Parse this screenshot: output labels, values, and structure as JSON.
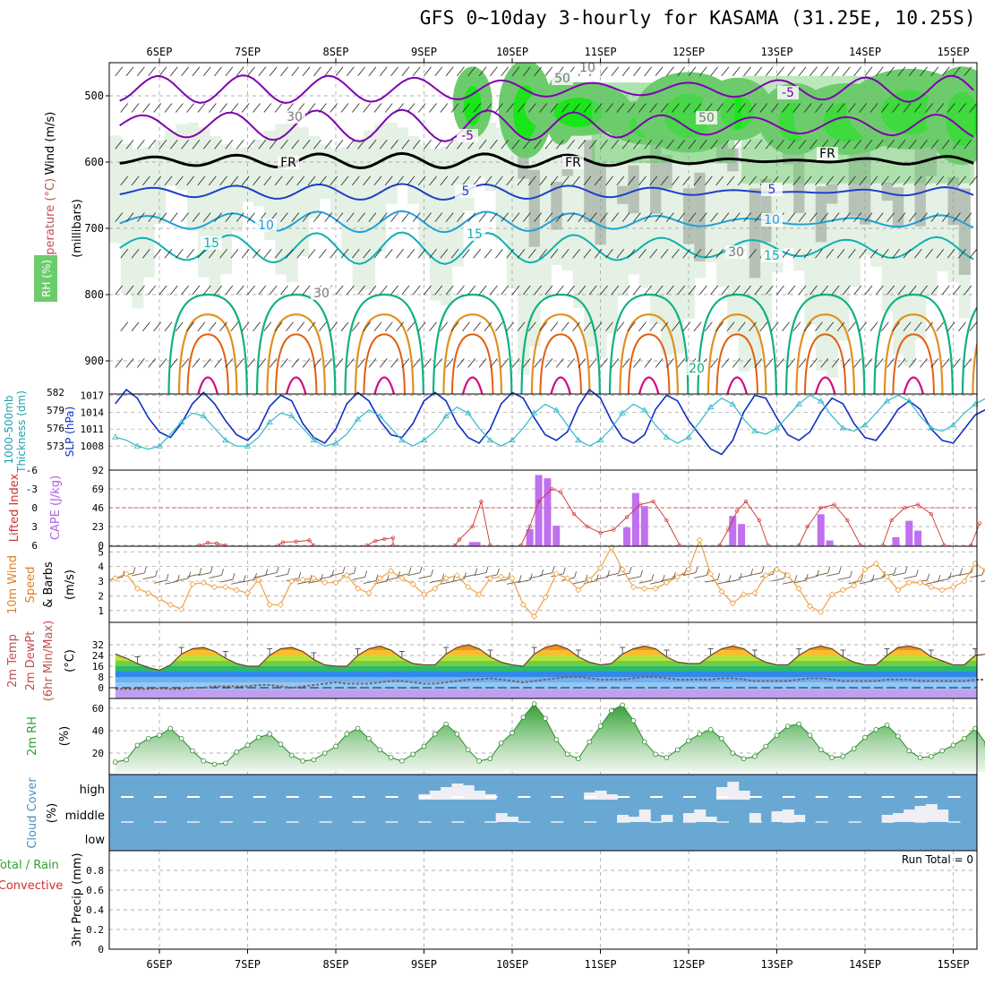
{
  "title": "GFS 0~10day 3-hourly for KASAMA (31.25E, 10.25S)",
  "dates": [
    "6SEP",
    "7SEP",
    "8SEP",
    "9SEP",
    "10SEP",
    "11SEP",
    "12SEP",
    "13SEP",
    "14SEP",
    "15SEP"
  ],
  "colors": {
    "rh_light": "#e4f1e4",
    "rh_mid": "#c9dfc9",
    "rh_grey": "#b7c2b7",
    "rh_green": "#6ccc6c",
    "rh_bright": "#19e619",
    "temp_purple": "#8000b0",
    "temp_blue": "#1e40c8",
    "temp_cyan": "#20a0d8",
    "temp_teal": "#10b0b0",
    "temp_green": "#10b080",
    "temp_orange": "#e09020",
    "temp_darkorange": "#e06010",
    "temp_magenta": "#d01080",
    "slp": "#1030c0",
    "thickness": "#30b8c8",
    "lifted": "#d03030",
    "cape": "#c070f0",
    "wind": "#f0a040",
    "rh2m": "#40b040",
    "cloud": "#6aa8d4",
    "cloud_light": "#eeeef4"
  },
  "panel_labels": {
    "upper": {
      "wind": "Wind (m/s)",
      "temp": "Temperature (°C)",
      "rh": "RH (%)",
      "axis": "(millibars)"
    },
    "slp": {
      "thick": "1000-500mb",
      "thick2": "Thickness (dm)",
      "slp": "SLP (hPa)"
    },
    "cape": {
      "li": "Lifted Index",
      "cape": "CAPE (J/kg)"
    },
    "wind": {
      "a": "10m Wind",
      "b": "Speed",
      "c": "& Barbs",
      "unit": "(m/s)"
    },
    "temp": {
      "a": "2m Temp",
      "b": "2m DewPt",
      "c": "(6hr Min/Max)",
      "unit": "(°C)"
    },
    "rh": {
      "a": "2m RH",
      "unit": "(%)"
    },
    "cloud": {
      "a": "Cloud Cover",
      "unit": "(%)",
      "levels": [
        "high",
        "middle",
        "low"
      ]
    },
    "precip": {
      "a": "Total / Rain",
      "b": "Convective",
      "c": "3hr Precip",
      "unit": "(mm)",
      "run_total": "Run Total = 0"
    }
  },
  "contour_labels": [
    "-5",
    "-5",
    "5",
    "5",
    "10",
    "10",
    "15",
    "15",
    "15",
    "20",
    "FR",
    "FR",
    "FR",
    "50",
    "50",
    "30",
    "30",
    "30",
    "10"
  ],
  "chart_data": [
    {
      "type": "heatmap",
      "name": "upper-air",
      "ylabel": "millibars",
      "yticks": [
        500,
        600,
        700,
        800,
        900
      ],
      "ylim": [
        450,
        950
      ]
    },
    {
      "type": "line",
      "name": "slp-thickness",
      "y1ticks": [
        573,
        576,
        579,
        582
      ],
      "y2ticks": [
        1008,
        1011,
        1014,
        1017
      ],
      "series": [
        {
          "name": "SLP",
          "values": [
            1015.5,
            1018,
            1016.5,
            1013,
            1010.5,
            1009.5,
            1012,
            1015.5,
            1017.5,
            1015.5,
            1012.5,
            1010,
            1009,
            1011,
            1015,
            1017,
            1016,
            1012,
            1009.5,
            1008.5,
            1011,
            1015.5,
            1017.5,
            1016,
            1012.5,
            1010,
            1009.5,
            1012,
            1016,
            1017.5,
            1016,
            1012,
            1009.5,
            1008.5,
            1011,
            1015.5,
            1017.5,
            1016.5,
            1013,
            1010,
            1009,
            1010.5,
            1015,
            1018,
            1016.5,
            1012.5,
            1009.5,
            1008.5,
            1010,
            1014.5,
            1017,
            1016,
            1012.5,
            1010,
            1007.5,
            1006.5,
            1009,
            1014,
            1017,
            1016.5,
            1013,
            1010,
            1009,
            1010.5,
            1014,
            1016.5,
            1015.5,
            1012,
            1009.5,
            1009,
            1011.5,
            1014.5,
            1016,
            1014.5,
            1011,
            1009,
            1008.5,
            1011,
            1013.5,
            1014.5
          ]
        },
        {
          "name": "Thickness",
          "values": [
            574.5,
            574,
            573,
            572.5,
            573,
            575,
            577,
            578.5,
            578,
            576,
            574,
            573,
            573,
            574.5,
            577,
            578.5,
            578,
            576,
            574,
            573,
            573.5,
            575,
            577.5,
            579,
            578,
            576,
            574,
            573,
            574,
            575.5,
            578,
            579.5,
            578.5,
            576,
            574,
            573,
            574,
            576,
            578.5,
            580,
            579,
            576.5,
            574,
            573,
            574,
            576,
            578.5,
            580,
            579,
            576.5,
            574.5,
            573.5,
            574.5,
            577,
            579.5,
            581,
            580,
            577.5,
            575.5,
            575,
            576,
            578,
            580,
            581.5,
            580.5,
            578,
            576,
            575.5,
            576.5,
            578.5,
            580.5,
            581.5,
            580.5,
            578,
            576,
            575.5,
            576.5,
            578.5,
            580,
            581
          ]
        }
      ]
    },
    {
      "type": "bar",
      "name": "cape-lifted-index",
      "y1ticks": [
        6,
        3,
        0,
        -3,
        -6
      ],
      "y2ticks": [
        0,
        23,
        46,
        69,
        92
      ],
      "cape_bars": [
        {
          "x": 9.55,
          "v": 4
        },
        {
          "x": 9.6,
          "v": 4
        },
        {
          "x": 10.2,
          "v": 20
        },
        {
          "x": 10.3,
          "v": 86
        },
        {
          "x": 10.4,
          "v": 82
        },
        {
          "x": 10.5,
          "v": 24
        },
        {
          "x": 11.3,
          "v": 22
        },
        {
          "x": 11.4,
          "v": 64
        },
        {
          "x": 11.5,
          "v": 48
        },
        {
          "x": 12.5,
          "v": 36
        },
        {
          "x": 12.6,
          "v": 26
        },
        {
          "x": 13.5,
          "v": 38
        },
        {
          "x": 13.6,
          "v": 6
        },
        {
          "x": 14.35,
          "v": 10
        },
        {
          "x": 14.5,
          "v": 30
        },
        {
          "x": 14.6,
          "v": 18
        }
      ],
      "lifted_index_segments": [
        [
          [
            6.45,
            6
          ],
          [
            6.55,
            5.6
          ],
          [
            6.65,
            5.7
          ],
          [
            6.75,
            6
          ]
        ],
        [
          [
            7.35,
            6
          ],
          [
            7.4,
            5.5
          ],
          [
            7.55,
            5.4
          ],
          [
            7.7,
            5.2
          ],
          [
            7.75,
            6
          ]
        ],
        [
          [
            8.35,
            6
          ],
          [
            8.45,
            5.3
          ],
          [
            8.55,
            5
          ],
          [
            8.65,
            4.8
          ],
          [
            8.65,
            6
          ]
        ],
        [
          [
            9.35,
            6
          ],
          [
            9.4,
            5.1
          ],
          [
            9.55,
            3
          ],
          [
            9.65,
            -1
          ],
          [
            9.75,
            6
          ]
        ],
        [
          [
            10.1,
            6
          ],
          [
            10.2,
            3
          ],
          [
            10.3,
            -1
          ],
          [
            10.45,
            -3
          ],
          [
            10.55,
            -2.5
          ],
          [
            10.7,
            1
          ],
          [
            10.85,
            3
          ],
          [
            11,
            4
          ],
          [
            11.15,
            3.5
          ],
          [
            11.3,
            1.5
          ],
          [
            11.45,
            -0.5
          ],
          [
            11.6,
            -1
          ],
          [
            11.75,
            2
          ],
          [
            11.9,
            6
          ]
        ],
        [
          [
            12.35,
            6
          ],
          [
            12.45,
            3.5
          ],
          [
            12.55,
            0.5
          ],
          [
            12.65,
            -1
          ],
          [
            12.8,
            2
          ],
          [
            12.9,
            6
          ]
        ],
        [
          [
            13.25,
            6
          ],
          [
            13.35,
            3
          ],
          [
            13.5,
            0
          ],
          [
            13.65,
            -0.5
          ],
          [
            13.8,
            2
          ],
          [
            13.95,
            6
          ]
        ],
        [
          [
            14.2,
            6
          ],
          [
            14.3,
            2
          ],
          [
            14.45,
            0
          ],
          [
            14.6,
            -0.5
          ],
          [
            14.75,
            1
          ],
          [
            14.9,
            6
          ]
        ],
        [
          [
            15.2,
            6
          ],
          [
            15.3,
            2.5
          ]
        ]
      ]
    },
    {
      "type": "line",
      "name": "10m-wind",
      "ylabel": "m/s",
      "yticks": [
        1,
        2,
        3,
        4,
        5
      ],
      "series": [
        {
          "name": "Speed",
          "values": [
            3.2,
            3.5,
            2.5,
            2.2,
            1.8,
            1.4,
            1.1,
            2.8,
            2.9,
            2.6,
            2.6,
            2.4,
            2.2,
            3.1,
            1.4,
            1.4,
            3,
            3.1,
            3.2,
            2.9,
            2.9,
            3.4,
            2.5,
            2.2,
            3.2,
            3.7,
            3.2,
            2.8,
            2.1,
            2.5,
            3.2,
            3.4,
            2.6,
            2.1,
            3.2,
            3.3,
            3.2,
            1.4,
            0.6,
            1.9,
            3.5,
            3.2,
            2.4,
            3.1,
            3.9,
            5.3,
            3.8,
            2.6,
            2.5,
            2.5,
            2.9,
            3.3,
            3.8,
            5.8,
            3.5,
            2.3,
            1.5,
            2.1,
            2.2,
            3.4,
            3.8,
            3.4,
            2.5,
            1.3,
            0.9,
            2.1,
            2.4,
            2.7,
            3.8,
            4.2,
            3.3,
            2.4,
            2.9,
            2.9,
            2.6,
            2.4,
            2.6,
            3,
            4.2,
            3.7,
            2.6,
            1.2,
            2.2,
            2.9
          ]
        }
      ]
    },
    {
      "type": "area",
      "name": "2m-temp",
      "ylabel": "°C",
      "yticks": [
        0,
        8,
        16,
        24,
        32
      ],
      "series": [
        {
          "name": "Temp",
          "values": [
            25,
            22,
            18,
            15,
            13,
            17,
            25,
            29,
            30,
            27,
            22,
            18,
            16,
            16,
            24,
            29,
            30,
            27,
            21,
            17,
            16,
            16,
            24,
            29,
            31,
            28,
            22,
            18,
            17,
            17,
            25,
            30,
            32,
            29,
            23,
            19,
            17,
            16,
            25,
            30,
            32,
            29,
            23,
            19,
            17,
            18,
            25,
            29,
            31,
            29,
            23,
            19,
            18,
            18,
            24,
            29,
            31,
            29,
            23,
            19,
            17,
            17,
            24,
            29,
            31,
            29,
            23,
            19,
            17,
            17,
            24,
            30,
            31,
            29,
            23,
            20,
            17,
            17,
            24,
            25
          ]
        },
        {
          "name": "DewPt",
          "values": [
            -1,
            -1,
            -1,
            -1,
            -0.5,
            -1,
            -1,
            0,
            0,
            1,
            1,
            1,
            1,
            2,
            2,
            1,
            0,
            1,
            2,
            3,
            4,
            3,
            3,
            3,
            4,
            5,
            5,
            4,
            3,
            3,
            4,
            5,
            6,
            6,
            7,
            6,
            5,
            4,
            5,
            6,
            7,
            8,
            8,
            7,
            6,
            6,
            6,
            7,
            8,
            8,
            7,
            6,
            6,
            6,
            6,
            7,
            7,
            6,
            5,
            5,
            5,
            5,
            6,
            7,
            7,
            6,
            5,
            5,
            5,
            5,
            6,
            6,
            6,
            5,
            5,
            5,
            5,
            5,
            6,
            6
          ]
        }
      ]
    },
    {
      "type": "area",
      "name": "2m-rh",
      "ylabel": "%",
      "yticks": [
        20,
        40,
        60
      ],
      "values": [
        12,
        14,
        27,
        33,
        36,
        42,
        33,
        22,
        13,
        10,
        11,
        21,
        27,
        34,
        37,
        28,
        18,
        13,
        14,
        20,
        26,
        37,
        42,
        33,
        23,
        16,
        13,
        19,
        26,
        37,
        46,
        37,
        23,
        13,
        15,
        29,
        38,
        52,
        64,
        51,
        32,
        19,
        15,
        30,
        44,
        58,
        63,
        49,
        30,
        19,
        16,
        23,
        31,
        37,
        41,
        33,
        20,
        15,
        17,
        26,
        36,
        44,
        46,
        36,
        23,
        16,
        17,
        24,
        34,
        41,
        45,
        35,
        22,
        16,
        17,
        22,
        27,
        33,
        42,
        28
      ]
    },
    {
      "type": "bar",
      "name": "cloud-cover",
      "levels": [
        "high",
        "middle",
        "low"
      ]
    },
    {
      "type": "bar",
      "name": "3hr-precip",
      "ylabel": "mm",
      "yticks": [
        0,
        0.2,
        0.4,
        0.6,
        0.8
      ],
      "values": []
    }
  ]
}
